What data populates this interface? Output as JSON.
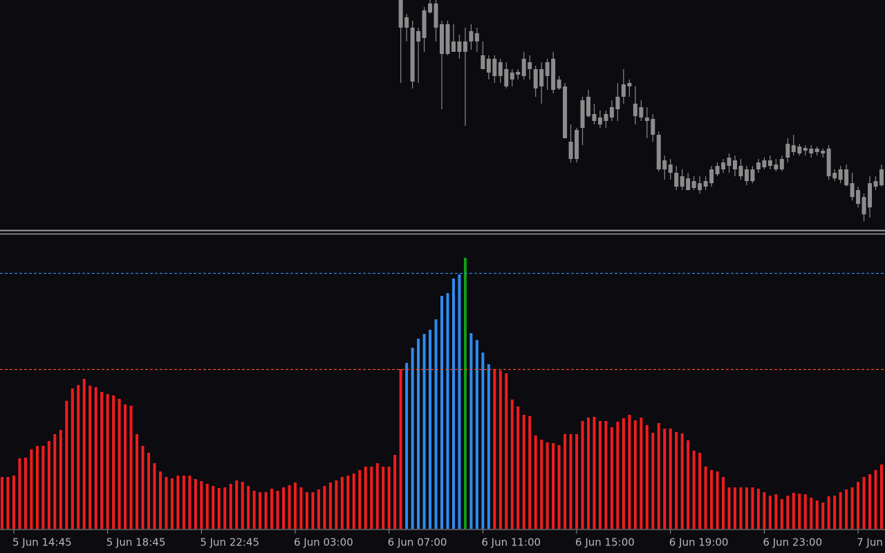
{
  "chart_data": [
    {
      "type": "candlestick",
      "color": "#8c8c8c",
      "ylim": [
        668,
        1000
      ],
      "open": [
        null,
        null,
        null,
        null,
        null,
        null,
        null,
        null,
        null,
        null,
        null,
        null,
        null,
        null,
        null,
        null,
        null,
        null,
        null,
        null,
        null,
        null,
        null,
        null,
        null,
        null,
        null,
        null,
        null,
        null,
        null,
        null,
        null,
        null,
        null,
        null,
        null,
        null,
        null,
        null,
        null,
        null,
        null,
        null,
        null,
        null,
        null,
        null,
        null,
        null,
        null,
        null,
        null,
        null,
        null,
        null,
        null,
        null,
        null,
        null,
        null,
        null,
        null,
        null,
        null,
        null,
        null,
        null,
        960,
        960,
        882,
        940,
        945,
        982,
        960,
        922,
        922,
        925,
        925,
        925,
        940,
        940,
        900,
        895,
        890,
        890,
        875,
        885,
        892,
        890,
        900,
        872,
        875,
        890,
        870,
        872,
        800,
        770,
        770,
        815,
        832,
        825,
        820,
        825,
        830,
        842,
        860,
        875,
        832,
        830,
        825,
        805,
        755,
        755,
        750,
        730,
        730,
        725,
        728,
        725,
        730,
        735,
        748,
        755,
        760,
        755,
        745,
        738,
        738,
        755,
        758,
        760,
        755,
        755,
        772,
        780,
        778,
        782,
        778,
        780,
        778,
        745,
        742,
        740,
        732,
        715,
        705,
        690,
        700,
        730,
        732
      ],
      "high": [
        null,
        null,
        null,
        null,
        null,
        null,
        null,
        null,
        null,
        null,
        null,
        null,
        null,
        null,
        null,
        null,
        null,
        null,
        null,
        null,
        null,
        null,
        null,
        null,
        null,
        null,
        null,
        null,
        null,
        null,
        null,
        null,
        null,
        null,
        null,
        null,
        null,
        null,
        null,
        null,
        null,
        null,
        null,
        null,
        null,
        null,
        null,
        null,
        null,
        null,
        null,
        null,
        null,
        null,
        null,
        null,
        null,
        null,
        null,
        null,
        null,
        null,
        null,
        null,
        null,
        null,
        null,
        null,
        1000,
        980,
        970,
        960,
        990,
        1000,
        1000,
        970,
        970,
        965,
        950,
        960,
        965,
        960,
        940,
        920,
        920,
        915,
        910,
        900,
        900,
        925,
        920,
        905,
        910,
        915,
        925,
        890,
        880,
        820,
        815,
        860,
        870,
        850,
        840,
        840,
        855,
        880,
        900,
        885,
        875,
        855,
        845,
        835,
        810,
        775,
        770,
        760,
        755,
        750,
        745,
        745,
        745,
        760,
        765,
        770,
        778,
        775,
        770,
        760,
        760,
        770,
        772,
        775,
        770,
        775,
        800,
        805,
        792,
        790,
        790,
        788,
        785,
        790,
        755,
        760,
        762,
        750,
        730,
        720,
        745,
        745,
        762
      ],
      "low": [
        null,
        null,
        null,
        null,
        null,
        null,
        null,
        null,
        null,
        null,
        null,
        null,
        null,
        null,
        null,
        null,
        null,
        null,
        null,
        null,
        null,
        null,
        null,
        null,
        null,
        null,
        null,
        null,
        null,
        null,
        null,
        null,
        null,
        null,
        null,
        null,
        null,
        null,
        null,
        null,
        null,
        null,
        null,
        null,
        null,
        null,
        null,
        null,
        null,
        null,
        null,
        null,
        null,
        null,
        null,
        null,
        null,
        null,
        null,
        null,
        null,
        null,
        null,
        null,
        null,
        null,
        null,
        null,
        880,
        940,
        872,
        880,
        925,
        980,
        940,
        842,
        920,
        925,
        915,
        818,
        928,
        925,
        900,
        885,
        880,
        880,
        872,
        875,
        885,
        885,
        885,
        860,
        850,
        870,
        865,
        870,
        800,
        765,
        765,
        790,
        830,
        820,
        815,
        815,
        825,
        825,
        850,
        860,
        820,
        825,
        800,
        795,
        752,
        740,
        740,
        725,
        725,
        725,
        725,
        720,
        725,
        730,
        745,
        750,
        750,
        745,
        740,
        732,
        735,
        750,
        755,
        755,
        752,
        752,
        765,
        775,
        775,
        775,
        772,
        775,
        772,
        740,
        738,
        735,
        730,
        710,
        700,
        680,
        685,
        725,
        730
      ],
      "close": [
        null,
        null,
        null,
        null,
        null,
        null,
        null,
        null,
        null,
        null,
        null,
        null,
        null,
        null,
        null,
        null,
        null,
        null,
        null,
        null,
        null,
        null,
        null,
        null,
        null,
        null,
        null,
        null,
        null,
        null,
        null,
        null,
        null,
        null,
        null,
        null,
        null,
        null,
        null,
        null,
        null,
        null,
        null,
        null,
        null,
        null,
        null,
        null,
        null,
        null,
        null,
        null,
        null,
        null,
        null,
        null,
        null,
        null,
        null,
        null,
        null,
        null,
        null,
        null,
        null,
        null,
        null,
        null,
        1000,
        975,
        960,
        955,
        985,
        995,
        995,
        965,
        965,
        940,
        940,
        940,
        955,
        952,
        920,
        915,
        915,
        910,
        900,
        895,
        896,
        915,
        910,
        900,
        900,
        910,
        915,
        885,
        875,
        795,
        812,
        855,
        860,
        835,
        830,
        835,
        845,
        860,
        878,
        880,
        850,
        845,
        830,
        828,
        805,
        768,
        762,
        750,
        745,
        742,
        738,
        735,
        738,
        755,
        760,
        765,
        772,
        768,
        760,
        755,
        755,
        765,
        768,
        768,
        762,
        770,
        792,
        790,
        788,
        786,
        785,
        785,
        782,
        785,
        750,
        755,
        755,
        735,
        725,
        715,
        735,
        738,
        755
      ]
    },
    {
      "type": "bar",
      "ylim": [
        0,
        425
      ],
      "categories": [
        null,
        null,
        "5 Jun 14:45",
        null,
        null,
        null,
        null,
        null,
        null,
        null,
        null,
        null,
        null,
        null,
        null,
        null,
        null,
        null,
        "5 Jun 18:45",
        null,
        null,
        null,
        null,
        null,
        null,
        null,
        null,
        null,
        null,
        null,
        null,
        null,
        null,
        null,
        "5 Jun 22:45",
        null,
        null,
        null,
        null,
        null,
        null,
        null,
        null,
        null,
        null,
        null,
        null,
        null,
        null,
        null,
        "6 Jun 03:00",
        null,
        null,
        null,
        null,
        null,
        null,
        null,
        null,
        null,
        null,
        null,
        null,
        null,
        null,
        null,
        "6 Jun 07:00",
        null,
        null,
        null,
        null,
        null,
        null,
        null,
        null,
        null,
        null,
        null,
        null,
        null,
        null,
        null,
        "6 Jun 11:00",
        null,
        null,
        null,
        null,
        null,
        null,
        null,
        null,
        null,
        null,
        null,
        null,
        null,
        null,
        null,
        "6 Jun 15:00",
        null,
        null,
        null,
        null,
        null,
        null,
        null,
        null,
        null,
        null,
        null,
        null,
        null,
        null,
        null,
        "6 Jun 19:00",
        null,
        null,
        null,
        null,
        null,
        null,
        null,
        null,
        null,
        null,
        null,
        null,
        null,
        null,
        null,
        "6 Jun 23:00",
        null,
        null,
        null,
        null,
        null,
        null,
        null,
        null,
        null,
        null,
        null,
        null,
        null,
        null,
        null,
        "7 Jun",
        null,
        null,
        null,
        null
      ],
      "series": [
        {
          "color": "#f21c1c",
          "values": [
            75,
            75,
            77,
            102,
            103,
            115,
            120,
            120,
            127,
            137,
            143,
            185,
            203,
            208,
            217,
            207,
            205,
            198,
            195,
            193,
            188,
            180,
            178,
            137,
            120,
            110,
            95,
            83,
            75,
            73,
            77,
            77,
            77,
            72,
            69,
            65,
            62,
            59,
            60,
            65,
            70,
            68,
            62,
            55,
            53,
            53,
            58,
            55,
            60,
            63,
            67,
            60,
            53,
            53,
            57,
            62,
            67,
            70,
            75,
            77,
            80,
            85,
            90,
            90,
            95,
            90,
            90,
            107,
            231,
            null,
            null,
            null,
            null,
            null,
            null,
            null,
            null,
            null,
            null,
            null,
            null,
            null,
            null,
            null,
            231,
            229,
            225,
            187,
            177,
            165,
            163,
            135,
            129,
            125,
            124,
            121,
            137,
            137,
            137,
            156,
            161,
            162,
            156,
            156,
            147,
            155,
            160,
            165,
            157,
            161,
            150,
            139,
            153,
            145,
            145,
            140,
            138,
            128,
            113,
            110,
            90,
            85,
            83,
            75,
            60,
            60,
            60,
            60,
            60,
            58,
            53,
            48,
            50,
            43,
            48,
            52,
            51,
            50,
            45,
            41,
            38,
            47,
            48,
            53,
            57,
            60,
            68,
            75,
            79,
            85,
            93
          ]
        },
        {
          "color": "#2e8bef",
          "values": [
            null,
            null,
            null,
            null,
            null,
            null,
            null,
            null,
            null,
            null,
            null,
            null,
            null,
            null,
            null,
            null,
            null,
            null,
            null,
            null,
            null,
            null,
            null,
            null,
            null,
            null,
            null,
            null,
            null,
            null,
            null,
            null,
            null,
            null,
            null,
            null,
            null,
            null,
            null,
            null,
            null,
            null,
            null,
            null,
            null,
            null,
            null,
            null,
            null,
            null,
            null,
            null,
            null,
            null,
            null,
            null,
            null,
            null,
            null,
            null,
            null,
            null,
            null,
            null,
            null,
            null,
            null,
            null,
            null,
            240,
            262,
            275,
            282,
            288,
            303,
            337,
            341,
            362,
            368,
            null,
            283,
            273,
            255,
            238,
            null,
            null,
            null,
            null,
            null,
            null,
            null,
            null,
            null,
            null,
            null,
            null,
            null,
            null,
            null,
            null,
            null,
            null,
            null,
            null,
            null,
            null,
            null,
            null,
            null,
            null,
            null,
            null,
            null,
            null,
            null,
            null,
            null,
            null,
            null,
            null,
            null,
            null,
            null,
            null,
            null,
            null,
            null,
            null,
            null,
            null,
            null,
            null,
            null,
            null,
            null,
            null,
            null,
            null,
            null,
            null,
            null,
            null,
            null,
            null,
            null,
            null,
            null,
            null,
            null,
            null,
            null
          ]
        },
        {
          "color": "#12a012",
          "values": [
            null,
            null,
            null,
            null,
            null,
            null,
            null,
            null,
            null,
            null,
            null,
            null,
            null,
            null,
            null,
            null,
            null,
            null,
            null,
            null,
            null,
            null,
            null,
            null,
            null,
            null,
            null,
            null,
            null,
            null,
            null,
            null,
            null,
            null,
            null,
            null,
            null,
            null,
            null,
            null,
            null,
            null,
            null,
            null,
            null,
            null,
            null,
            null,
            null,
            null,
            null,
            null,
            null,
            null,
            null,
            null,
            null,
            null,
            null,
            null,
            null,
            null,
            null,
            null,
            null,
            null,
            null,
            null,
            null,
            null,
            null,
            null,
            null,
            null,
            null,
            null,
            null,
            null,
            null,
            392,
            null,
            null,
            null,
            null,
            null,
            null,
            null,
            null,
            null,
            null,
            null,
            null,
            null,
            null,
            null,
            null,
            null,
            null,
            null,
            null,
            null,
            null,
            null,
            null,
            null,
            null,
            null,
            null,
            null,
            null,
            null,
            null,
            null,
            null,
            null,
            null,
            null,
            null,
            null,
            null,
            null,
            null,
            null,
            null,
            null,
            null,
            null,
            null,
            null,
            null,
            null,
            null,
            null,
            null,
            null,
            null,
            null,
            null,
            null,
            null,
            null,
            null,
            null,
            null,
            null,
            null,
            null,
            null,
            null,
            null,
            null
          ]
        }
      ],
      "levels": [
        {
          "value": 370,
          "color": "#2e8bef"
        },
        {
          "value": 231,
          "color": "#ff4d1a"
        }
      ]
    }
  ]
}
